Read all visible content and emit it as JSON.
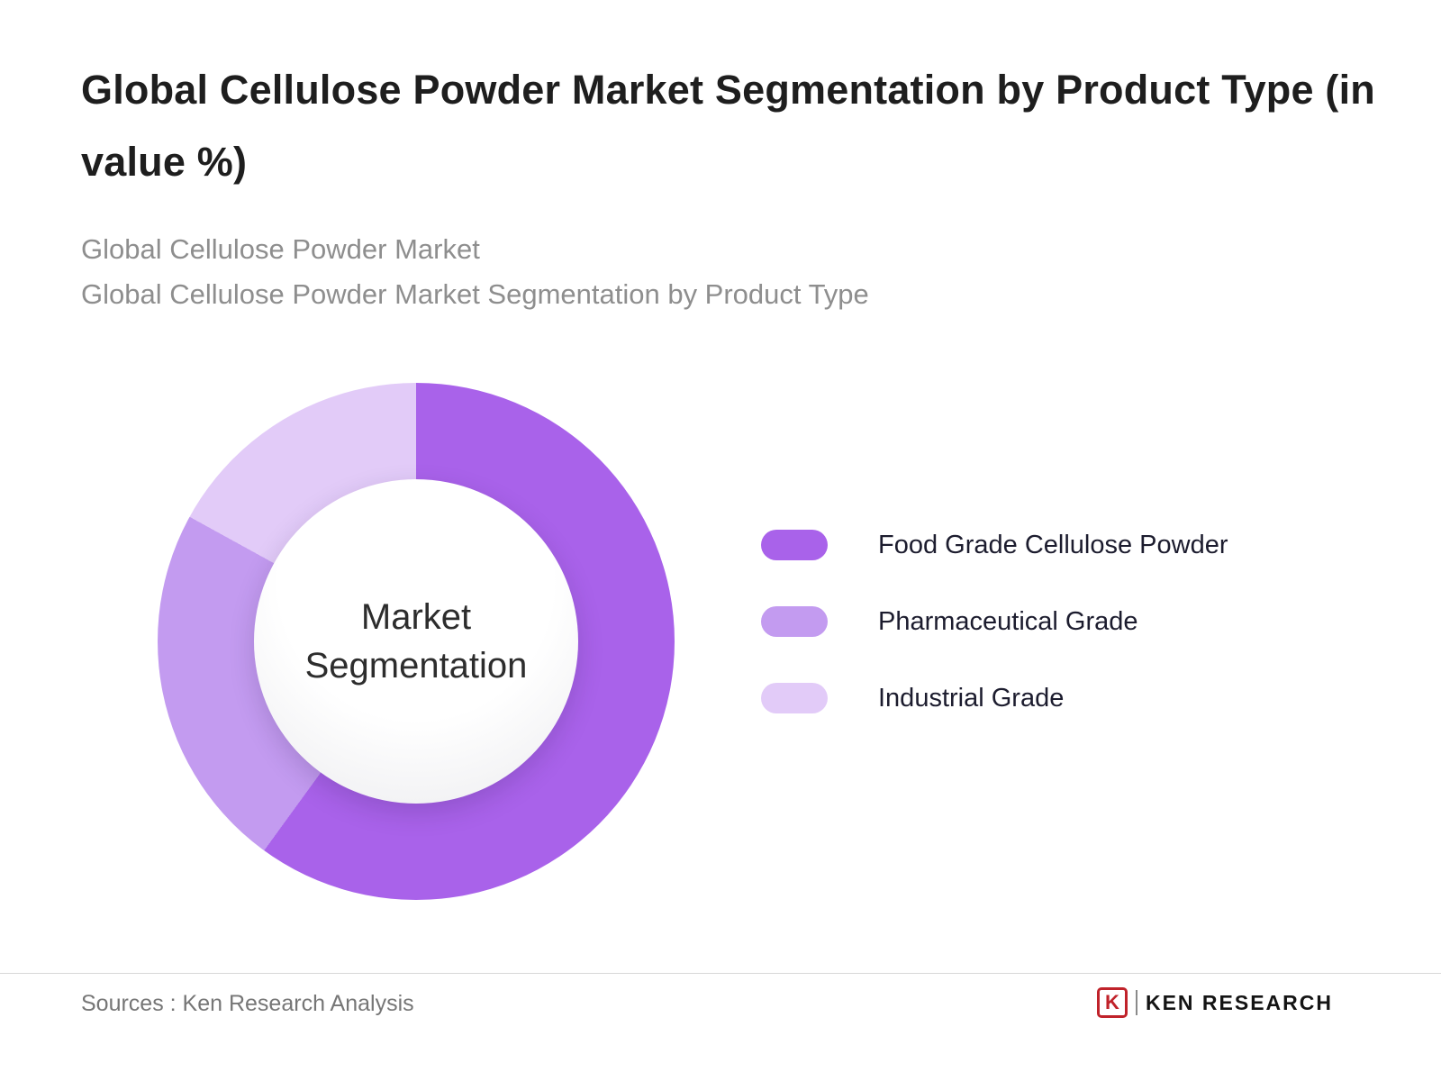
{
  "page": {
    "title": "Global Cellulose Powder Market Segmentation by Product Type (in value %)",
    "subtitle_line1": "Global Cellulose Powder Market",
    "subtitle_line2": "Global Cellulose Powder Market Segmentation by Product Type",
    "footer": {
      "sources": "Sources : Ken Research Analysis",
      "brand_initial": "K",
      "brand_name": "KEN RESEARCH"
    }
  },
  "chart_data": {
    "type": "pie",
    "variant": "donut",
    "center_label": "Market Segmentation",
    "units": "value %",
    "start_angle_deg": 0,
    "direction": "clockwise",
    "legend_position": "right",
    "series": [
      {
        "name": "Food Grade Cellulose Powder",
        "value": 60,
        "color": "#a962ea"
      },
      {
        "name": "Pharmaceutical Grade",
        "value": 23,
        "color": "#c39bf0"
      },
      {
        "name": "Industrial Grade",
        "value": 17,
        "color": "#e2cbf8"
      }
    ],
    "colors": {
      "title_text": "#1e1e1e",
      "subtitle_text": "#8e8e8e",
      "brand_red": "#c0222a"
    }
  }
}
